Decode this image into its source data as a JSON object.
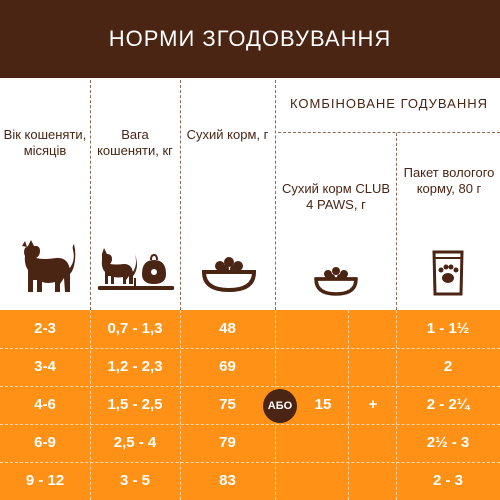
{
  "header": {
    "title": "НОРМИ ЗГОДОВУВАННЯ"
  },
  "columns": {
    "age": "Вік кошеняти, місяців",
    "weight": "Вага кошеняти, кг",
    "dry": "Сухий корм, г",
    "combined_title": "КОМБІНОВАНЕ ГОДУВАННЯ",
    "club": "Сухий корм CLUB 4 PAWS, г",
    "wet": "Пакет вологого корму, 80 г"
  },
  "icons": {
    "age": "cat-icon",
    "weight": "kitten-on-scale-icon",
    "dry": "food-bowl-icon",
    "club": "food-bowl-icon",
    "wet": "wet-food-pouch-icon"
  },
  "rows": [
    {
      "age": "2-3",
      "weight": "0,7 - 1,3",
      "dry": "48",
      "wet": "1 - 1½"
    },
    {
      "age": "3-4",
      "weight": "1,2 - 2,3",
      "dry": "69",
      "wet": "2"
    },
    {
      "age": "4-6",
      "weight": "1,5 - 2,5",
      "dry": "75",
      "wet": "2 - 2¼"
    },
    {
      "age": "6-9",
      "weight": "2,5 - 4",
      "dry": "79",
      "wet": "2½ - 3"
    },
    {
      "age": "9 - 12",
      "weight": "3 - 5",
      "dry": "83",
      "wet": "2 - 3"
    }
  ],
  "combined": {
    "or_label": "АБО",
    "club_value": "15",
    "plus": "+"
  },
  "colors": {
    "brown": "#4a2514",
    "orange": "#ff9216",
    "white": "#ffffff"
  }
}
